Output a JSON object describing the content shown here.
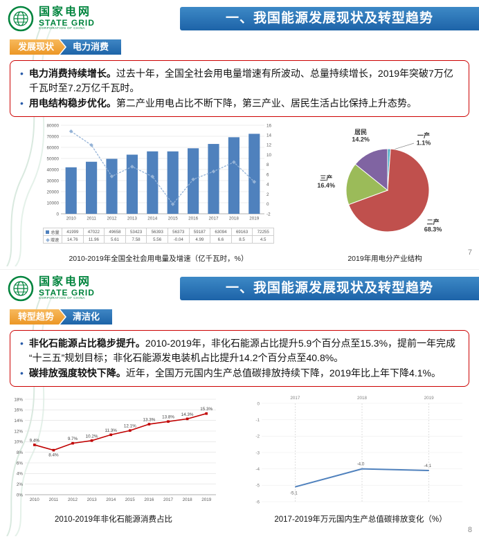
{
  "logo": {
    "cn": "国家电网",
    "en": "STATE GRID",
    "sub": "CORPORATION OF CHINA"
  },
  "slides": [
    {
      "title": "一、我国能源发展现状及转型趋势",
      "tag_left": "发展现状",
      "tag_right": "电力消费",
      "bullets": [
        {
          "lead": "电力消费持续增长。",
          "text": "过去十年，全国全社会用电量增速有所波动、总量持续增长，2019年突破7万亿千瓦时至7.2万亿千瓦时。"
        },
        {
          "lead": "用电结构稳步优化。",
          "text": "第二产业用电占比不断下降，第三产业、居民生活占比保持上升态势。"
        }
      ],
      "page_number": "7"
    },
    {
      "title": "一、我国能源发展现状及转型趋势",
      "tag_left": "转型趋势",
      "tag_right": "清洁化",
      "bullets": [
        {
          "lead": "非化石能源占比稳步提升。",
          "text": "2010-2019年，非化石能源占比提升5.9个百分点至15.3%，提前一年完成“十三五”规划目标；非化石能源发电装机占比提升14.2个百分点至40.8%。"
        },
        {
          "lead": "碳排放强度较快下降。",
          "text": "近年，全国万元国内生产总值碳排放持续下降，2019年比上年下降4.1%。"
        }
      ],
      "page_number": "8"
    }
  ],
  "chart_data": [
    {
      "type": "bar",
      "title": "2010-2019年全国全社会用电量及增速（亿千瓦时，%）",
      "categories": [
        "2010",
        "2011",
        "2012",
        "2013",
        "2014",
        "2015",
        "2016",
        "2017",
        "2018",
        "2019"
      ],
      "series": [
        {
          "name": "总量",
          "kind": "bar",
          "color": "#4f81bd",
          "values": [
            41999,
            47022,
            49658,
            53423,
            56393,
            56373,
            59187,
            63094,
            69163,
            72255
          ]
        },
        {
          "name": "增速",
          "kind": "line",
          "color": "#95b3d7",
          "values": [
            14.76,
            11.96,
            5.61,
            7.58,
            5.56,
            -0.04,
            4.99,
            6.6,
            8.5,
            4.5
          ]
        }
      ],
      "y_left": {
        "min": 0,
        "max": 80000,
        "step": 10000
      },
      "y_right": {
        "min": -2,
        "max": 16,
        "step": 2
      },
      "legend_position": "table-bottom",
      "grid": true
    },
    {
      "type": "pie",
      "title": "2019年用电分产业结构",
      "labels": [
        "一产",
        "二产",
        "三产",
        "居民"
      ],
      "values": [
        1.1,
        68.3,
        16.4,
        14.2
      ],
      "colors": [
        "#4bacc6",
        "#c0504d",
        "#9bbb59",
        "#8064a2"
      ],
      "unit": "%"
    },
    {
      "type": "line",
      "title": "2010-2019年非化石能源消费占比",
      "categories": [
        "2010",
        "2011",
        "2012",
        "2013",
        "2014",
        "2015",
        "2016",
        "2017",
        "2018",
        "2019"
      ],
      "values": [
        9.4,
        8.4,
        9.7,
        10.2,
        11.3,
        12.1,
        13.3,
        13.8,
        14.3,
        15.3
      ],
      "labels": [
        "9.4%",
        "8.4%",
        "9.7%",
        "10.2%",
        "11.3%",
        "12.1%",
        "13.3%",
        "13.8%",
        "14.3%",
        "15.3%"
      ],
      "color": "#c00000",
      "ylim": [
        0,
        18
      ],
      "ystep": 2,
      "ysuffix": "%",
      "grid": true
    },
    {
      "type": "line",
      "title": "2017-2019年万元国内生产总值碳排放变化（%）",
      "categories": [
        "2017",
        "2018",
        "2019"
      ],
      "values": [
        -5.1,
        -4.0,
        -4.1
      ],
      "labels": [
        "-5.1",
        "-4.0",
        "-4.1"
      ],
      "color": "#4f81bd",
      "ylim": [
        -6,
        0
      ],
      "ystep": 1,
      "x_axis_position": "top",
      "grid": true
    }
  ]
}
